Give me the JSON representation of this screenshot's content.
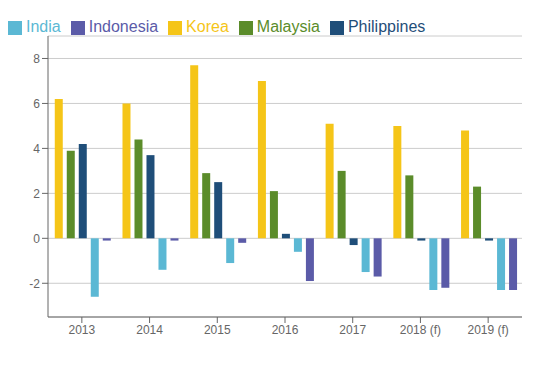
{
  "chart_data": {
    "type": "bar",
    "categories": [
      "2013",
      "2014",
      "2015",
      "2016",
      "2017",
      "2018 (f)",
      "2019 (f)"
    ],
    "series": [
      {
        "name": "Korea",
        "color": "#F5C518",
        "values": [
          6.2,
          6.0,
          7.7,
          7.0,
          5.1,
          5.0,
          4.8
        ]
      },
      {
        "name": "Malaysia",
        "color": "#5B8C2A",
        "values": [
          3.9,
          4.4,
          2.9,
          2.1,
          3.0,
          2.8,
          2.3
        ]
      },
      {
        "name": "Philippines",
        "color": "#1F4E79",
        "values": [
          4.2,
          3.7,
          2.5,
          0.2,
          -0.3,
          -0.1,
          -0.1
        ]
      },
      {
        "name": "India",
        "color": "#5BB8D4",
        "values": [
          -2.6,
          -1.4,
          -1.1,
          -0.6,
          -1.5,
          -2.3,
          -2.3
        ]
      },
      {
        "name": "Indonesia",
        "color": "#5B5BA8",
        "values": [
          -0.1,
          -0.1,
          -0.2,
          -1.9,
          -1.7,
          -2.2,
          -2.3
        ]
      }
    ],
    "ylim": [
      -3.5,
      9.0
    ],
    "yticks": [
      -2,
      0,
      2,
      4,
      6,
      8
    ],
    "grid": true,
    "legend": "top"
  }
}
